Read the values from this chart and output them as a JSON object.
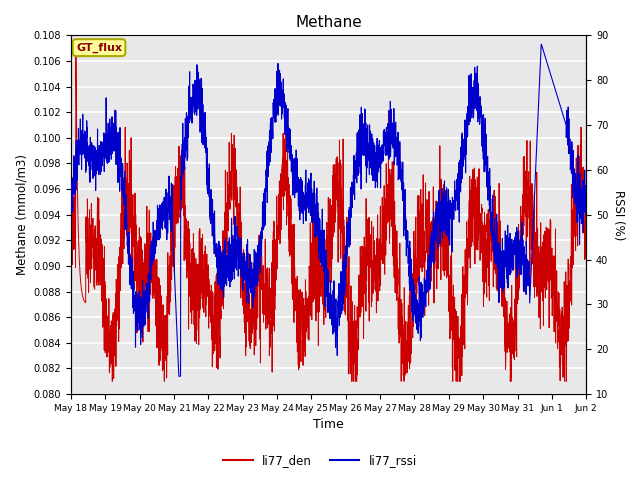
{
  "title": "Methane",
  "xlabel": "Time",
  "ylabel_left": "Methane (mmol/m3)",
  "ylabel_right": "RSSI (%)",
  "ylim_left": [
    0.08,
    0.108
  ],
  "ylim_right": [
    10,
    90
  ],
  "yticks_left": [
    0.08,
    0.082,
    0.084,
    0.086,
    0.088,
    0.09,
    0.092,
    0.094,
    0.096,
    0.098,
    0.1,
    0.102,
    0.104,
    0.106,
    0.108
  ],
  "yticks_right": [
    10,
    20,
    30,
    40,
    50,
    60,
    70,
    80,
    90
  ],
  "xtick_labels": [
    "May 18",
    "May 19",
    "May 20",
    "May 21",
    "May 22",
    "May 23",
    "May 24",
    "May 25",
    "May 26",
    "May 27",
    "May 28",
    "May 29",
    "May 30",
    "May 31",
    "Jun 1",
    "Jun 2"
  ],
  "bg_color": "#e8e8e8",
  "grid_color": "white",
  "line_color_den": "#cc0000",
  "line_color_rssi": "#0000cc",
  "legend_labels": [
    "li77_den",
    "li77_rssi"
  ],
  "annotation_text": "GT_flux",
  "annotation_bg": "#ffff99",
  "annotation_border": "#aaaa00"
}
